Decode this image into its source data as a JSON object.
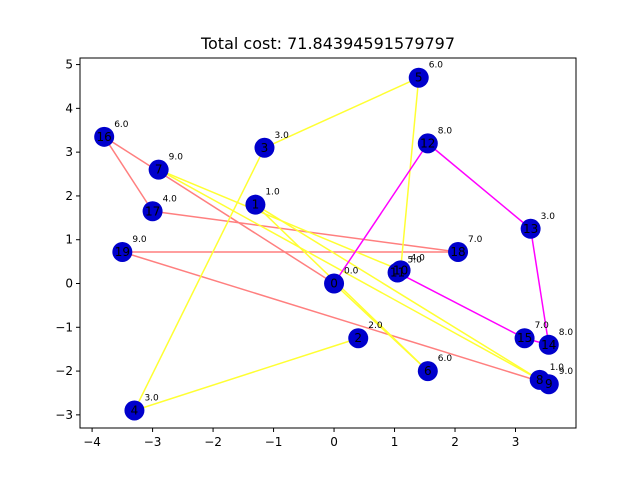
{
  "chart_data": {
    "type": "scatter",
    "title": "Total cost: 71.84394591579797",
    "xlabel": "",
    "ylabel": "",
    "xlim": [
      -4.2,
      4.0
    ],
    "ylim": [
      -3.3,
      5.15
    ],
    "xticks": [
      -4,
      -3,
      -2,
      -1,
      0,
      1,
      2,
      3
    ],
    "yticks": [
      -3,
      -2,
      -1,
      0,
      1,
      2,
      3,
      4,
      5
    ],
    "grid": false,
    "node_color": "#0000cc",
    "depot": {
      "x": 0.0,
      "y": 0.0,
      "demand": "0.0",
      "id": "0"
    },
    "nodes": [
      {
        "id": "1",
        "x": -1.3,
        "y": 1.8,
        "demand": "1.0"
      },
      {
        "id": "2",
        "x": 0.4,
        "y": -1.25,
        "demand": "2.0"
      },
      {
        "id": "3",
        "x": -1.15,
        "y": 3.1,
        "demand": "3.0"
      },
      {
        "id": "4",
        "x": -3.3,
        "y": -2.9,
        "demand": "3.0"
      },
      {
        "id": "5",
        "x": 1.4,
        "y": 4.7,
        "demand": "6.0"
      },
      {
        "id": "6",
        "x": 1.55,
        "y": -2.0,
        "demand": "6.0"
      },
      {
        "id": "7",
        "x": -2.9,
        "y": 2.6,
        "demand": "9.0"
      },
      {
        "id": "8",
        "x": 3.4,
        "y": -2.2,
        "demand": "1.0"
      },
      {
        "id": "9",
        "x": 3.55,
        "y": -2.3,
        "demand": "9.0"
      },
      {
        "id": "10",
        "x": 1.1,
        "y": 0.3,
        "demand": "4.0"
      },
      {
        "id": "11",
        "x": 1.05,
        "y": 0.25,
        "demand": "5.0"
      },
      {
        "id": "12",
        "x": 1.55,
        "y": 3.2,
        "demand": "8.0"
      },
      {
        "id": "13",
        "x": 3.25,
        "y": 1.25,
        "demand": "3.0"
      },
      {
        "id": "14",
        "x": 3.55,
        "y": -1.4,
        "demand": "8.0"
      },
      {
        "id": "15",
        "x": 3.15,
        "y": -1.25,
        "demand": "7.0"
      },
      {
        "id": "16",
        "x": -3.8,
        "y": 3.35,
        "demand": "6.0"
      },
      {
        "id": "17",
        "x": -3.0,
        "y": 1.65,
        "demand": "4.0"
      },
      {
        "id": "18",
        "x": 2.05,
        "y": 0.72,
        "demand": "7.0"
      },
      {
        "id": "19",
        "x": -3.5,
        "y": 0.72,
        "demand": "9.0"
      }
    ],
    "series": [
      {
        "color": "#ff7f7f",
        "path": [
          "0",
          "16",
          "17",
          "18",
          "19",
          "9",
          "8"
        ]
      },
      {
        "color": "#ffff33",
        "path": [
          "0",
          "6",
          "1",
          "8",
          "7",
          "10",
          "5",
          "3",
          "4",
          "2"
        ]
      },
      {
        "color": "#ff00ff",
        "path": [
          "0",
          "12",
          "13",
          "14",
          "15",
          "11"
        ]
      }
    ]
  }
}
